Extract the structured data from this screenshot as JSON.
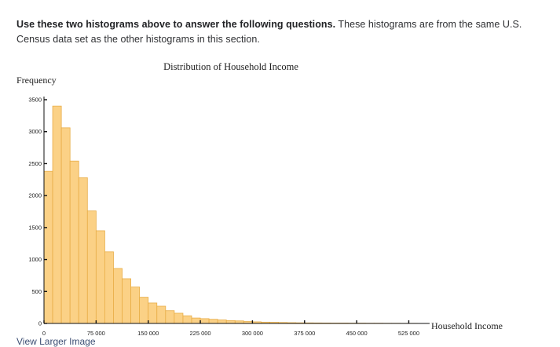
{
  "intro": {
    "bold": "Use these two histograms above to answer the following questions.",
    "rest": " These histograms are from the same U.S. Census data set as the other histograms in this section."
  },
  "link": {
    "label": "View Larger Image"
  },
  "colors": {
    "bar_fill": "#fbd186",
    "bar_stroke": "#e8ad47",
    "axis": "#111111",
    "text": "#2f3033"
  },
  "chart_data": {
    "type": "bar",
    "title": "Distribution of Household Income",
    "xlabel": "Household Income",
    "ylabel": "Frequency",
    "bin_width": 12500,
    "x": [
      0,
      12500,
      25000,
      37500,
      50000,
      62500,
      75000,
      87500,
      100000,
      112500,
      125000,
      137500,
      150000,
      162500,
      175000,
      187500,
      200000,
      212500,
      225000,
      237500,
      250000,
      262500,
      275000,
      287500,
      300000,
      312500,
      325000,
      337500,
      350000,
      362500,
      375000,
      387500,
      400000,
      412500,
      425000,
      437500,
      450000,
      462500,
      475000,
      487500,
      500000,
      512500,
      525000
    ],
    "values": [
      2380,
      3400,
      3060,
      2540,
      2280,
      1760,
      1450,
      1120,
      860,
      700,
      570,
      410,
      320,
      270,
      200,
      160,
      120,
      85,
      75,
      65,
      55,
      45,
      40,
      30,
      25,
      20,
      18,
      15,
      12,
      10,
      9,
      8,
      7,
      6,
      6,
      5,
      5,
      4,
      4,
      3,
      3,
      2,
      2
    ],
    "xticks": [
      0,
      75000,
      150000,
      225000,
      300000,
      375000,
      450000,
      525000
    ],
    "xtick_labels": [
      "0",
      "75 000",
      "150 000",
      "225 000",
      "300 000",
      "375 000",
      "450 000",
      "525 000"
    ],
    "yticks": [
      0,
      500,
      1000,
      1500,
      2000,
      2500,
      3000,
      3500
    ],
    "ytick_labels": [
      "0",
      "500",
      "1000",
      "1500",
      "2000",
      "2500",
      "3000",
      "3500"
    ],
    "xlim": [
      0,
      555000
    ],
    "ylim": [
      0,
      3500
    ],
    "grid": false,
    "legend": "none"
  }
}
